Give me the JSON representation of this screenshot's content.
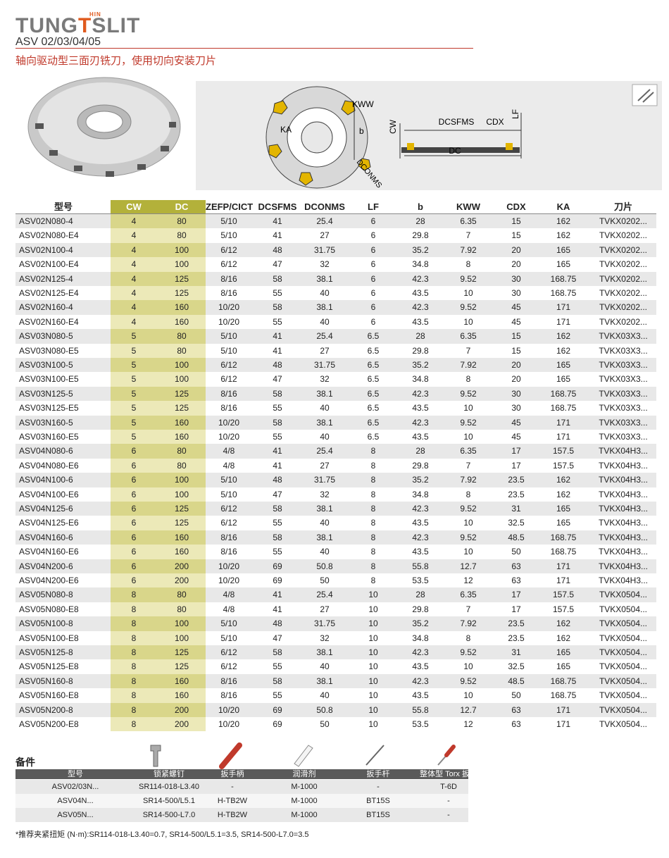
{
  "header": {
    "logo": {
      "left": "TUNG",
      "mark": "T",
      "small": "HIN",
      "right": "SLIT"
    },
    "title": "ASV 02/03/04/05",
    "subtitle": "轴向驱动型三面刃铣刀，使用切向安装刀片"
  },
  "diagram": {
    "labels": {
      "kww": "KWW",
      "cw": "CW",
      "dcsfms": "DCSFMS",
      "cdx": "CDX",
      "lf": "LF",
      "ka": "KA",
      "b": "b",
      "dconms": "DCONMS",
      "dc": "DC"
    }
  },
  "table": {
    "columns": [
      "型号",
      "CW",
      "DC",
      "ZEFP/CICT",
      "DCSFMS",
      "DCONMS",
      "LF",
      "b",
      "KWW",
      "CDX",
      "KA",
      "刀片"
    ],
    "rows": [
      [
        "ASV02N080-4",
        "4",
        "80",
        "5/10",
        "41",
        "25.4",
        "6",
        "28",
        "6.35",
        "15",
        "162",
        "TVKX0202..."
      ],
      [
        "ASV02N080-E4",
        "4",
        "80",
        "5/10",
        "41",
        "27",
        "6",
        "29.8",
        "7",
        "15",
        "162",
        "TVKX0202..."
      ],
      [
        "ASV02N100-4",
        "4",
        "100",
        "6/12",
        "48",
        "31.75",
        "6",
        "35.2",
        "7.92",
        "20",
        "165",
        "TVKX0202..."
      ],
      [
        "ASV02N100-E4",
        "4",
        "100",
        "6/12",
        "47",
        "32",
        "6",
        "34.8",
        "8",
        "20",
        "165",
        "TVKX0202..."
      ],
      [
        "ASV02N125-4",
        "4",
        "125",
        "8/16",
        "58",
        "38.1",
        "6",
        "42.3",
        "9.52",
        "30",
        "168.75",
        "TVKX0202..."
      ],
      [
        "ASV02N125-E4",
        "4",
        "125",
        "8/16",
        "55",
        "40",
        "6",
        "43.5",
        "10",
        "30",
        "168.75",
        "TVKX0202..."
      ],
      [
        "ASV02N160-4",
        "4",
        "160",
        "10/20",
        "58",
        "38.1",
        "6",
        "42.3",
        "9.52",
        "45",
        "171",
        "TVKX0202..."
      ],
      [
        "ASV02N160-E4",
        "4",
        "160",
        "10/20",
        "55",
        "40",
        "6",
        "43.5",
        "10",
        "45",
        "171",
        "TVKX0202..."
      ],
      [
        "ASV03N080-5",
        "5",
        "80",
        "5/10",
        "41",
        "25.4",
        "6.5",
        "28",
        "6.35",
        "15",
        "162",
        "TVKX03X3..."
      ],
      [
        "ASV03N080-E5",
        "5",
        "80",
        "5/10",
        "41",
        "27",
        "6.5",
        "29.8",
        "7",
        "15",
        "162",
        "TVKX03X3..."
      ],
      [
        "ASV03N100-5",
        "5",
        "100",
        "6/12",
        "48",
        "31.75",
        "6.5",
        "35.2",
        "7.92",
        "20",
        "165",
        "TVKX03X3..."
      ],
      [
        "ASV03N100-E5",
        "5",
        "100",
        "6/12",
        "47",
        "32",
        "6.5",
        "34.8",
        "8",
        "20",
        "165",
        "TVKX03X3..."
      ],
      [
        "ASV03N125-5",
        "5",
        "125",
        "8/16",
        "58",
        "38.1",
        "6.5",
        "42.3",
        "9.52",
        "30",
        "168.75",
        "TVKX03X3..."
      ],
      [
        "ASV03N125-E5",
        "5",
        "125",
        "8/16",
        "55",
        "40",
        "6.5",
        "43.5",
        "10",
        "30",
        "168.75",
        "TVKX03X3..."
      ],
      [
        "ASV03N160-5",
        "5",
        "160",
        "10/20",
        "58",
        "38.1",
        "6.5",
        "42.3",
        "9.52",
        "45",
        "171",
        "TVKX03X3..."
      ],
      [
        "ASV03N160-E5",
        "5",
        "160",
        "10/20",
        "55",
        "40",
        "6.5",
        "43.5",
        "10",
        "45",
        "171",
        "TVKX03X3..."
      ],
      [
        "ASV04N080-6",
        "6",
        "80",
        "4/8",
        "41",
        "25.4",
        "8",
        "28",
        "6.35",
        "17",
        "157.5",
        "TVKX04H3..."
      ],
      [
        "ASV04N080-E6",
        "6",
        "80",
        "4/8",
        "41",
        "27",
        "8",
        "29.8",
        "7",
        "17",
        "157.5",
        "TVKX04H3..."
      ],
      [
        "ASV04N100-6",
        "6",
        "100",
        "5/10",
        "48",
        "31.75",
        "8",
        "35.2",
        "7.92",
        "23.5",
        "162",
        "TVKX04H3..."
      ],
      [
        "ASV04N100-E6",
        "6",
        "100",
        "5/10",
        "47",
        "32",
        "8",
        "34.8",
        "8",
        "23.5",
        "162",
        "TVKX04H3..."
      ],
      [
        "ASV04N125-6",
        "6",
        "125",
        "6/12",
        "58",
        "38.1",
        "8",
        "42.3",
        "9.52",
        "31",
        "165",
        "TVKX04H3..."
      ],
      [
        "ASV04N125-E6",
        "6",
        "125",
        "6/12",
        "55",
        "40",
        "8",
        "43.5",
        "10",
        "32.5",
        "165",
        "TVKX04H3..."
      ],
      [
        "ASV04N160-6",
        "6",
        "160",
        "8/16",
        "58",
        "38.1",
        "8",
        "42.3",
        "9.52",
        "48.5",
        "168.75",
        "TVKX04H3..."
      ],
      [
        "ASV04N160-E6",
        "6",
        "160",
        "8/16",
        "55",
        "40",
        "8",
        "43.5",
        "10",
        "50",
        "168.75",
        "TVKX04H3..."
      ],
      [
        "ASV04N200-6",
        "6",
        "200",
        "10/20",
        "69",
        "50.8",
        "8",
        "55.8",
        "12.7",
        "63",
        "171",
        "TVKX04H3..."
      ],
      [
        "ASV04N200-E6",
        "6",
        "200",
        "10/20",
        "69",
        "50",
        "8",
        "53.5",
        "12",
        "63",
        "171",
        "TVKX04H3..."
      ],
      [
        "ASV05N080-8",
        "8",
        "80",
        "4/8",
        "41",
        "25.4",
        "10",
        "28",
        "6.35",
        "17",
        "157.5",
        "TVKX0504..."
      ],
      [
        "ASV05N080-E8",
        "8",
        "80",
        "4/8",
        "41",
        "27",
        "10",
        "29.8",
        "7",
        "17",
        "157.5",
        "TVKX0504..."
      ],
      [
        "ASV05N100-8",
        "8",
        "100",
        "5/10",
        "48",
        "31.75",
        "10",
        "35.2",
        "7.92",
        "23.5",
        "162",
        "TVKX0504..."
      ],
      [
        "ASV05N100-E8",
        "8",
        "100",
        "5/10",
        "47",
        "32",
        "10",
        "34.8",
        "8",
        "23.5",
        "162",
        "TVKX0504..."
      ],
      [
        "ASV05N125-8",
        "8",
        "125",
        "6/12",
        "58",
        "38.1",
        "10",
        "42.3",
        "9.52",
        "31",
        "165",
        "TVKX0504..."
      ],
      [
        "ASV05N125-E8",
        "8",
        "125",
        "6/12",
        "55",
        "40",
        "10",
        "43.5",
        "10",
        "32.5",
        "165",
        "TVKX0504..."
      ],
      [
        "ASV05N160-8",
        "8",
        "160",
        "8/16",
        "58",
        "38.1",
        "10",
        "42.3",
        "9.52",
        "48.5",
        "168.75",
        "TVKX0504..."
      ],
      [
        "ASV05N160-E8",
        "8",
        "160",
        "8/16",
        "55",
        "40",
        "10",
        "43.5",
        "10",
        "50",
        "168.75",
        "TVKX0504..."
      ],
      [
        "ASV05N200-8",
        "8",
        "200",
        "10/20",
        "69",
        "50.8",
        "10",
        "55.8",
        "12.7",
        "63",
        "171",
        "TVKX0504..."
      ],
      [
        "ASV05N200-E8",
        "8",
        "200",
        "10/20",
        "69",
        "50",
        "10",
        "53.5",
        "12",
        "63",
        "171",
        "TVKX0504..."
      ]
    ]
  },
  "spares": {
    "title": "备件",
    "columns": [
      "型号",
      "锁紧螺钉",
      "扳手柄",
      "润滑剂",
      "扳手杆",
      "整体型 Torx 扳手"
    ],
    "rows": [
      [
        "ASV02/03N...",
        "SR114-018-L3.40",
        "-",
        "M-1000",
        "-",
        "T-6D"
      ],
      [
        "ASV04N...",
        "SR14-500/L5.1",
        "H-TB2W",
        "M-1000",
        "BT15S",
        "-"
      ],
      [
        "ASV05N...",
        "SR14-500-L7.0",
        "H-TB2W",
        "M-1000",
        "BT15S",
        "-"
      ]
    ],
    "note": "*推荐夹紧扭矩 (N·m):SR114-018-L3.40=0.7, SR14-500/L5.1=3.5, SR14-500-L7.0=3.5"
  }
}
